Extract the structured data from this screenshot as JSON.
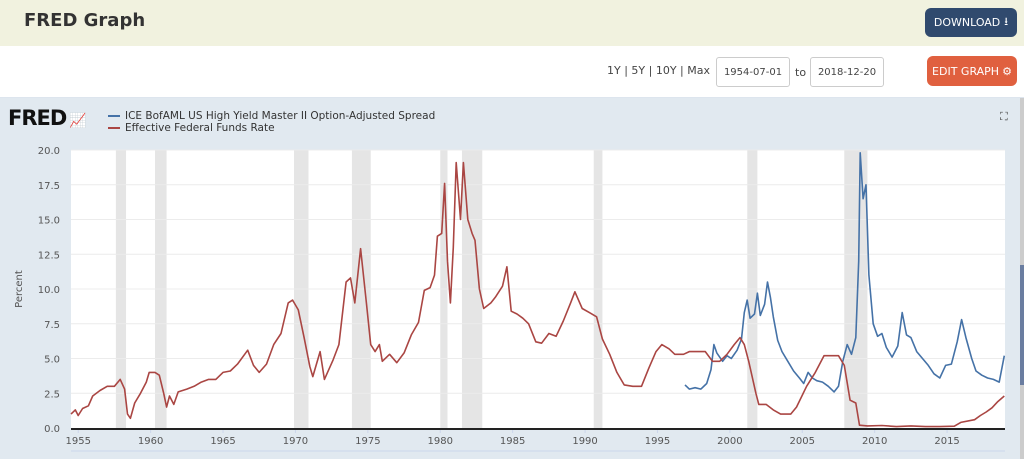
{
  "header": {
    "title": "FRED Graph",
    "download_label": "DOWNLOAD",
    "download_icon": "download-icon"
  },
  "controls": {
    "range_links": [
      "1Y",
      "5Y",
      "10Y",
      "Max"
    ],
    "range_text": "1Y | 5Y | 10Y | Max",
    "start_date": "1954-07-01",
    "to_label": "to",
    "end_date": "2018-12-20",
    "edit_label": "EDIT GRAPH",
    "edit_icon": "gear-icon"
  },
  "chart_header": {
    "logo": "FRED",
    "expand_icon": "fullscreen-icon"
  },
  "chart_data": {
    "type": "line",
    "title": "",
    "xlabel": "",
    "ylabel": "Percent",
    "xlim": [
      1954.5,
      2019.0
    ],
    "ylim": [
      0,
      20
    ],
    "yticks": [
      "0.0",
      "2.5",
      "5.0",
      "7.5",
      "10.0",
      "12.5",
      "15.0",
      "17.5",
      "20.0"
    ],
    "xticks": [
      "1955",
      "1960",
      "1965",
      "1970",
      "1975",
      "1980",
      "1985",
      "1990",
      "1995",
      "2000",
      "2005",
      "2010",
      "2015"
    ],
    "grid": true,
    "legend_position": "top-left",
    "recessions": [
      [
        1957.6,
        1958.3
      ],
      [
        1960.3,
        1961.1
      ],
      [
        1969.9,
        1970.9
      ],
      [
        1973.9,
        1975.2
      ],
      [
        1980.0,
        1980.5
      ],
      [
        1981.5,
        1982.9
      ],
      [
        1990.6,
        1991.2
      ],
      [
        2001.2,
        2001.9
      ],
      [
        2007.9,
        2009.5
      ]
    ],
    "series": [
      {
        "name": "ICE BofAML US High Yield Master II Option-Adjusted Spread",
        "color": "#4572a7",
        "points": [
          [
            1996.9,
            3.1
          ],
          [
            1997.2,
            2.8
          ],
          [
            1997.6,
            2.9
          ],
          [
            1998.0,
            2.8
          ],
          [
            1998.4,
            3.2
          ],
          [
            1998.7,
            4.2
          ],
          [
            1998.9,
            6.0
          ],
          [
            1999.1,
            5.4
          ],
          [
            1999.5,
            4.8
          ],
          [
            1999.8,
            5.2
          ],
          [
            2000.1,
            5.0
          ],
          [
            2000.5,
            5.6
          ],
          [
            2000.8,
            6.4
          ],
          [
            2001.0,
            8.3
          ],
          [
            2001.2,
            9.2
          ],
          [
            2001.4,
            7.9
          ],
          [
            2001.7,
            8.2
          ],
          [
            2001.9,
            9.7
          ],
          [
            2002.1,
            8.1
          ],
          [
            2002.4,
            8.9
          ],
          [
            2002.6,
            10.5
          ],
          [
            2002.8,
            9.4
          ],
          [
            2003.0,
            8.0
          ],
          [
            2003.3,
            6.3
          ],
          [
            2003.6,
            5.5
          ],
          [
            2004.0,
            4.8
          ],
          [
            2004.4,
            4.1
          ],
          [
            2004.8,
            3.6
          ],
          [
            2005.1,
            3.2
          ],
          [
            2005.4,
            4.0
          ],
          [
            2005.7,
            3.6
          ],
          [
            2006.0,
            3.4
          ],
          [
            2006.4,
            3.3
          ],
          [
            2006.8,
            3.0
          ],
          [
            2007.2,
            2.6
          ],
          [
            2007.5,
            3.0
          ],
          [
            2007.8,
            4.8
          ],
          [
            2008.1,
            6.0
          ],
          [
            2008.4,
            5.3
          ],
          [
            2008.7,
            6.5
          ],
          [
            2008.9,
            12.0
          ],
          [
            2009.0,
            19.8
          ],
          [
            2009.2,
            16.5
          ],
          [
            2009.4,
            17.5
          ],
          [
            2009.6,
            11.0
          ],
          [
            2009.9,
            7.5
          ],
          [
            2010.2,
            6.6
          ],
          [
            2010.5,
            6.8
          ],
          [
            2010.8,
            5.8
          ],
          [
            2011.2,
            5.1
          ],
          [
            2011.6,
            5.9
          ],
          [
            2011.9,
            8.3
          ],
          [
            2012.2,
            6.7
          ],
          [
            2012.5,
            6.5
          ],
          [
            2012.9,
            5.5
          ],
          [
            2013.3,
            5.0
          ],
          [
            2013.7,
            4.5
          ],
          [
            2014.1,
            3.9
          ],
          [
            2014.5,
            3.6
          ],
          [
            2014.9,
            4.5
          ],
          [
            2015.3,
            4.6
          ],
          [
            2015.7,
            6.2
          ],
          [
            2016.0,
            7.8
          ],
          [
            2016.3,
            6.5
          ],
          [
            2016.7,
            5.0
          ],
          [
            2017.0,
            4.1
          ],
          [
            2017.4,
            3.8
          ],
          [
            2017.8,
            3.6
          ],
          [
            2018.2,
            3.5
          ],
          [
            2018.6,
            3.3
          ],
          [
            2018.95,
            5.2
          ]
        ]
      },
      {
        "name": "Effective Federal Funds Rate",
        "color": "#aa4643",
        "points": [
          [
            1954.5,
            1.0
          ],
          [
            1954.8,
            1.3
          ],
          [
            1955.0,
            0.9
          ],
          [
            1955.3,
            1.4
          ],
          [
            1955.7,
            1.6
          ],
          [
            1956.0,
            2.3
          ],
          [
            1956.5,
            2.7
          ],
          [
            1957.0,
            3.0
          ],
          [
            1957.5,
            3.0
          ],
          [
            1957.9,
            3.5
          ],
          [
            1958.2,
            2.8
          ],
          [
            1958.4,
            1.0
          ],
          [
            1958.6,
            0.7
          ],
          [
            1958.9,
            1.8
          ],
          [
            1959.3,
            2.5
          ],
          [
            1959.7,
            3.3
          ],
          [
            1959.9,
            4.0
          ],
          [
            1960.3,
            4.0
          ],
          [
            1960.6,
            3.8
          ],
          [
            1960.9,
            2.5
          ],
          [
            1961.1,
            1.5
          ],
          [
            1961.3,
            2.3
          ],
          [
            1961.6,
            1.7
          ],
          [
            1961.9,
            2.6
          ],
          [
            1962.5,
            2.8
          ],
          [
            1963.0,
            3.0
          ],
          [
            1963.5,
            3.3
          ],
          [
            1964.0,
            3.5
          ],
          [
            1964.5,
            3.5
          ],
          [
            1965.0,
            4.0
          ],
          [
            1965.5,
            4.1
          ],
          [
            1966.0,
            4.6
          ],
          [
            1966.7,
            5.6
          ],
          [
            1967.1,
            4.5
          ],
          [
            1967.5,
            4.0
          ],
          [
            1968.0,
            4.6
          ],
          [
            1968.5,
            6.0
          ],
          [
            1969.0,
            6.8
          ],
          [
            1969.5,
            9.0
          ],
          [
            1969.8,
            9.2
          ],
          [
            1970.2,
            8.5
          ],
          [
            1970.6,
            6.5
          ],
          [
            1971.0,
            4.4
          ],
          [
            1971.2,
            3.7
          ],
          [
            1971.7,
            5.5
          ],
          [
            1972.0,
            3.5
          ],
          [
            1972.6,
            4.9
          ],
          [
            1973.0,
            6.0
          ],
          [
            1973.5,
            10.5
          ],
          [
            1973.8,
            10.8
          ],
          [
            1974.1,
            9.0
          ],
          [
            1974.5,
            12.9
          ],
          [
            1974.9,
            9.0
          ],
          [
            1975.2,
            6.0
          ],
          [
            1975.5,
            5.5
          ],
          [
            1975.8,
            6.0
          ],
          [
            1976.0,
            4.8
          ],
          [
            1976.5,
            5.3
          ],
          [
            1977.0,
            4.7
          ],
          [
            1977.5,
            5.4
          ],
          [
            1978.0,
            6.7
          ],
          [
            1978.5,
            7.6
          ],
          [
            1978.9,
            9.9
          ],
          [
            1979.3,
            10.1
          ],
          [
            1979.6,
            11.0
          ],
          [
            1979.8,
            13.8
          ],
          [
            1980.1,
            14.0
          ],
          [
            1980.3,
            17.6
          ],
          [
            1980.5,
            12.0
          ],
          [
            1980.7,
            9.0
          ],
          [
            1980.9,
            13.0
          ],
          [
            1981.1,
            19.1
          ],
          [
            1981.4,
            15.0
          ],
          [
            1981.6,
            19.1
          ],
          [
            1981.9,
            15.0
          ],
          [
            1982.2,
            14.0
          ],
          [
            1982.4,
            13.5
          ],
          [
            1982.7,
            10.0
          ],
          [
            1983.0,
            8.6
          ],
          [
            1983.5,
            9.0
          ],
          [
            1983.8,
            9.4
          ],
          [
            1984.3,
            10.2
          ],
          [
            1984.6,
            11.6
          ],
          [
            1984.9,
            8.4
          ],
          [
            1985.3,
            8.2
          ],
          [
            1985.7,
            7.9
          ],
          [
            1986.1,
            7.5
          ],
          [
            1986.6,
            6.2
          ],
          [
            1987.0,
            6.1
          ],
          [
            1987.5,
            6.8
          ],
          [
            1988.0,
            6.6
          ],
          [
            1988.5,
            7.7
          ],
          [
            1989.0,
            9.0
          ],
          [
            1989.3,
            9.8
          ],
          [
            1989.8,
            8.6
          ],
          [
            1990.3,
            8.3
          ],
          [
            1990.8,
            8.0
          ],
          [
            1991.2,
            6.4
          ],
          [
            1991.7,
            5.3
          ],
          [
            1992.2,
            4.0
          ],
          [
            1992.7,
            3.1
          ],
          [
            1993.3,
            3.0
          ],
          [
            1993.9,
            3.0
          ],
          [
            1994.4,
            4.3
          ],
          [
            1994.9,
            5.5
          ],
          [
            1995.3,
            6.0
          ],
          [
            1995.8,
            5.7
          ],
          [
            1996.2,
            5.3
          ],
          [
            1996.8,
            5.3
          ],
          [
            1997.2,
            5.5
          ],
          [
            1997.8,
            5.5
          ],
          [
            1998.3,
            5.5
          ],
          [
            1998.8,
            4.8
          ],
          [
            1999.3,
            4.8
          ],
          [
            1999.8,
            5.3
          ],
          [
            2000.3,
            6.0
          ],
          [
            2000.7,
            6.5
          ],
          [
            2001.0,
            6.0
          ],
          [
            2001.3,
            4.8
          ],
          [
            2001.8,
            2.5
          ],
          [
            2002.0,
            1.7
          ],
          [
            2002.5,
            1.7
          ],
          [
            2003.0,
            1.3
          ],
          [
            2003.5,
            1.0
          ],
          [
            2004.2,
            1.0
          ],
          [
            2004.6,
            1.5
          ],
          [
            2005.3,
            3.0
          ],
          [
            2005.9,
            4.0
          ],
          [
            2006.5,
            5.2
          ],
          [
            2007.5,
            5.2
          ],
          [
            2007.9,
            4.5
          ],
          [
            2008.3,
            2.0
          ],
          [
            2008.7,
            1.8
          ],
          [
            2008.95,
            0.2
          ],
          [
            2009.5,
            0.15
          ],
          [
            2010.5,
            0.18
          ],
          [
            2011.5,
            0.1
          ],
          [
            2012.5,
            0.15
          ],
          [
            2013.5,
            0.1
          ],
          [
            2014.5,
            0.1
          ],
          [
            2015.5,
            0.13
          ],
          [
            2015.95,
            0.4
          ],
          [
            2016.9,
            0.6
          ],
          [
            2017.3,
            0.9
          ],
          [
            2017.7,
            1.15
          ],
          [
            2018.1,
            1.45
          ],
          [
            2018.5,
            1.9
          ],
          [
            2018.95,
            2.3
          ]
        ]
      }
    ]
  }
}
